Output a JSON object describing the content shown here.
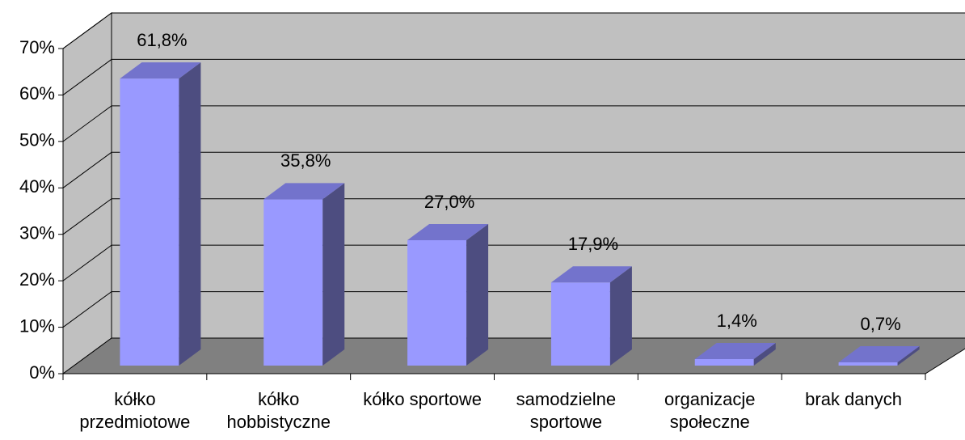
{
  "chart_data": {
    "type": "bar3d",
    "categories": [
      "kółko przedmiotowe",
      "kółko hobbistyczne",
      "kółko sportowe",
      "samodzielne sportowe",
      "organizacje społeczne",
      "brak danych"
    ],
    "values": [
      61.8,
      35.8,
      27.0,
      17.9,
      1.4,
      0.7
    ],
    "value_labels": [
      "61,8%",
      "35,8%",
      "27,0%",
      "17,9%",
      "1,4%",
      "0,7%"
    ],
    "color": "#9999ff",
    "ylim": [
      0,
      70
    ],
    "yticks": [
      {
        "value": 0,
        "label": "0%"
      },
      {
        "value": 10,
        "label": "10%"
      },
      {
        "value": 20,
        "label": "20%"
      },
      {
        "value": 30,
        "label": "30%"
      },
      {
        "value": 40,
        "label": "40%"
      },
      {
        "value": 50,
        "label": "50%"
      },
      {
        "value": 60,
        "label": "60%"
      },
      {
        "value": 70,
        "label": "70%"
      }
    ],
    "grid": true
  }
}
